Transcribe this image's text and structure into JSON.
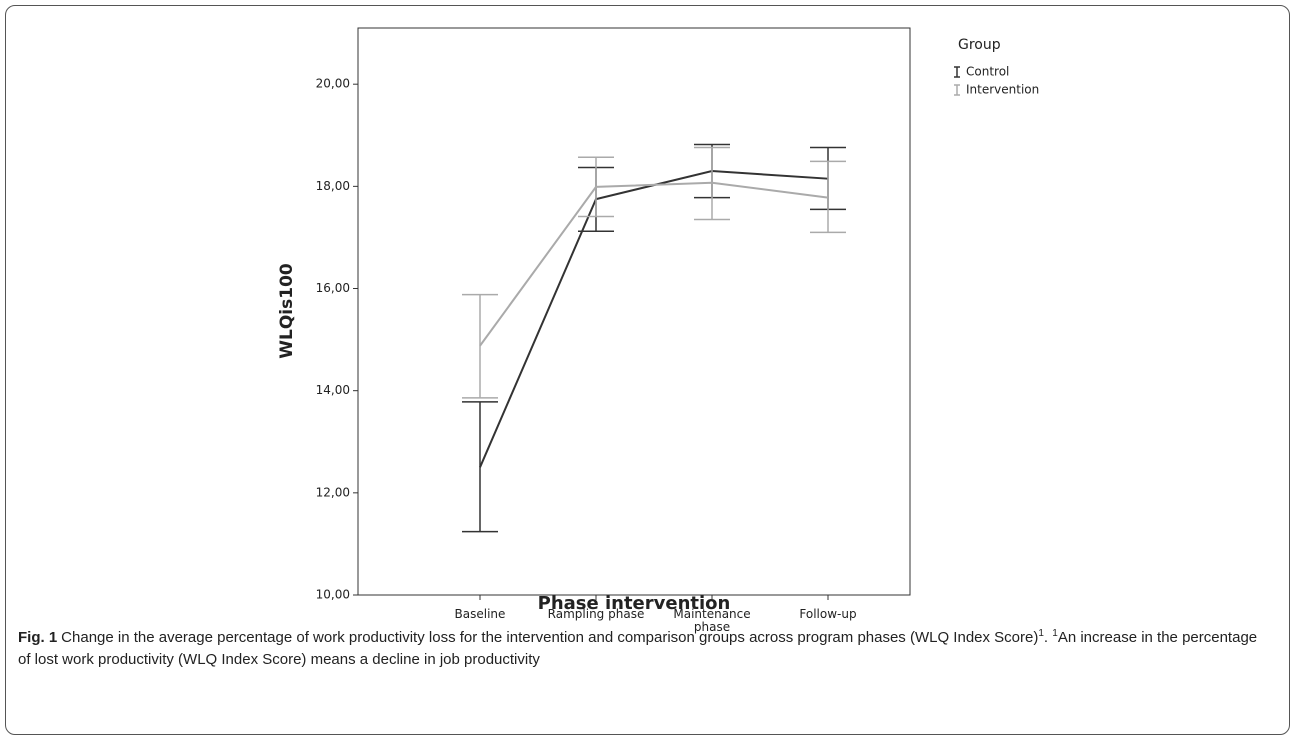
{
  "chart_data": {
    "type": "line-errorbar",
    "xlabel": "Phase intervention",
    "ylabel": "WLQis100",
    "categories": [
      "Baseline",
      "Rampling phase",
      "Maintenance phase",
      "Follow-up"
    ],
    "legend_title": "Group",
    "series": [
      {
        "name": "Control",
        "color": "#333333",
        "values": [
          12.5,
          17.75,
          18.3,
          18.15
        ],
        "lower": [
          11.24,
          17.12,
          17.78,
          17.55
        ],
        "upper": [
          13.78,
          18.37,
          18.82,
          18.76
        ]
      },
      {
        "name": "Intervention",
        "color": "#aaaaaa",
        "values": [
          14.88,
          17.99,
          18.07,
          17.78
        ],
        "lower": [
          13.86,
          17.41,
          17.35,
          17.1
        ],
        "upper": [
          15.88,
          18.57,
          18.76,
          18.49
        ]
      }
    ],
    "ylim": [
      10,
      21.1
    ],
    "yticks": [
      {
        "value": 10,
        "label": "10,00"
      },
      {
        "value": 12,
        "label": "12,00"
      },
      {
        "value": 14,
        "label": "14,00"
      },
      {
        "value": 16,
        "label": "16,00"
      },
      {
        "value": 18,
        "label": "18,00"
      },
      {
        "value": 20,
        "label": "20,00"
      }
    ],
    "grid": false
  },
  "caption": {
    "label": "Fig. 1",
    "text": "Change in the average percentage of work productivity loss for the intervention and comparison groups across program phases (WLQ Index Score)",
    "ref": "1",
    "text_after": ".",
    "note_marker": "1",
    "note": "An increase in the percentage of lost work productivity (WLQ Index Score) means a decline in job productivity"
  }
}
